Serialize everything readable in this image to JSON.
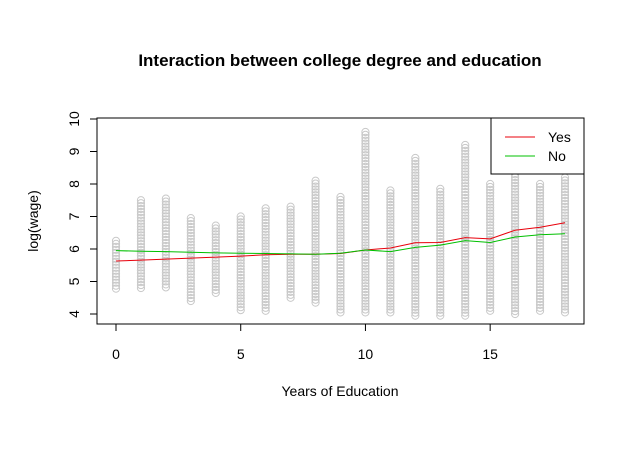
{
  "chart_data": {
    "type": "scatter",
    "title": "Interaction between college degree and education",
    "xlabel": "Years of Education",
    "ylabel": "log(wage)",
    "xlim": [
      0,
      18
    ],
    "ylim": [
      4,
      10
    ],
    "xticks": [
      0,
      5,
      10,
      15
    ],
    "yticks": [
      4,
      5,
      6,
      7,
      8,
      9,
      10
    ],
    "grid": false,
    "legend_position": "top-right",
    "point_color": "#c8c8c8",
    "scatter_points": [
      {
        "x": 0,
        "min": 4.78,
        "max": 6.25
      },
      {
        "x": 1,
        "min": 4.8,
        "max": 7.5
      },
      {
        "x": 2,
        "min": 4.82,
        "max": 7.55
      },
      {
        "x": 3,
        "min": 4.4,
        "max": 6.95
      },
      {
        "x": 4,
        "min": 4.65,
        "max": 6.72
      },
      {
        "x": 5,
        "min": 4.12,
        "max": 7.0
      },
      {
        "x": 6,
        "min": 4.1,
        "max": 7.25
      },
      {
        "x": 7,
        "min": 4.5,
        "max": 7.3
      },
      {
        "x": 8,
        "min": 4.35,
        "max": 8.1
      },
      {
        "x": 9,
        "min": 4.05,
        "max": 7.6
      },
      {
        "x": 10,
        "min": 4.05,
        "max": 9.6
      },
      {
        "x": 11,
        "min": 4.05,
        "max": 7.8
      },
      {
        "x": 12,
        "min": 3.95,
        "max": 8.8
      },
      {
        "x": 13,
        "min": 3.95,
        "max": 7.85
      },
      {
        "x": 14,
        "min": 3.95,
        "max": 9.2
      },
      {
        "x": 15,
        "min": 4.1,
        "max": 8.0
      },
      {
        "x": 16,
        "min": 4.0,
        "max": 8.3
      },
      {
        "x": 17,
        "min": 4.1,
        "max": 8.0
      },
      {
        "x": 18,
        "min": 4.05,
        "max": 8.2
      }
    ],
    "series": [
      {
        "name": "Yes",
        "color": "#e8000b",
        "x": [
          0,
          1,
          2,
          3,
          4,
          5,
          6,
          7,
          8,
          9,
          10,
          11,
          12,
          13,
          14,
          15,
          16,
          17,
          18
        ],
        "values": [
          5.63,
          5.66,
          5.69,
          5.72,
          5.75,
          5.78,
          5.82,
          5.84,
          5.84,
          5.86,
          5.97,
          6.03,
          6.19,
          6.2,
          6.35,
          6.31,
          6.58,
          6.67,
          6.81
        ]
      },
      {
        "name": "No",
        "color": "#00c000",
        "x": [
          0,
          1,
          2,
          3,
          4,
          5,
          6,
          7,
          8,
          9,
          10,
          11,
          12,
          13,
          14,
          15,
          16,
          17,
          18
        ],
        "values": [
          5.95,
          5.93,
          5.92,
          5.9,
          5.88,
          5.87,
          5.86,
          5.85,
          5.84,
          5.87,
          5.97,
          5.92,
          6.05,
          6.12,
          6.26,
          6.2,
          6.37,
          6.44,
          6.47
        ]
      }
    ]
  }
}
